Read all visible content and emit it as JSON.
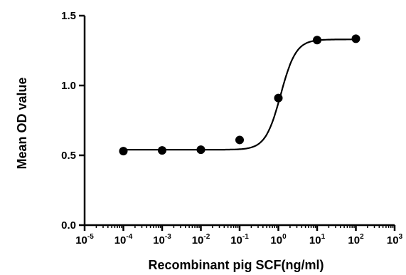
{
  "chart_data": {
    "type": "scatter",
    "title": "",
    "xlabel": "Recombinant pig SCF(ng/ml)",
    "ylabel": "Mean OD value",
    "x_scale": "log10",
    "xlim": [
      1e-05,
      1000
    ],
    "ylim": [
      0,
      1.5
    ],
    "x_ticks": [
      {
        "base": "10",
        "exp": "-5",
        "value": 1e-05
      },
      {
        "base": "10",
        "exp": "-4",
        "value": 0.0001
      },
      {
        "base": "10",
        "exp": "-3",
        "value": 0.001
      },
      {
        "base": "10",
        "exp": "-2",
        "value": 0.01
      },
      {
        "base": "10",
        "exp": "-1",
        "value": 0.1
      },
      {
        "base": "10",
        "exp": "0",
        "value": 1
      },
      {
        "base": "10",
        "exp": "1",
        "value": 10
      },
      {
        "base": "10",
        "exp": "2",
        "value": 100
      },
      {
        "base": "10",
        "exp": "3",
        "value": 1000
      }
    ],
    "y_ticks": [
      {
        "label": "0.0",
        "value": 0
      },
      {
        "label": "0.5",
        "value": 0.5
      },
      {
        "label": "1.0",
        "value": 1.0
      },
      {
        "label": "1.5",
        "value": 1.5
      }
    ],
    "grid": false,
    "series": [
      {
        "x": [
          0.0001,
          0.001,
          0.01,
          0.1,
          1,
          10,
          100
        ],
        "y": [
          0.53,
          0.535,
          0.54,
          0.61,
          0.91,
          1.325,
          1.335
        ]
      }
    ],
    "fit_curve": {
      "model": "sigmoidal dose-response",
      "bottom": 0.54,
      "top": 1.33,
      "ec50": 1.15,
      "hill_slope": 2.2
    },
    "colors": {
      "marks": "#000000",
      "background": "#ffffff"
    }
  }
}
